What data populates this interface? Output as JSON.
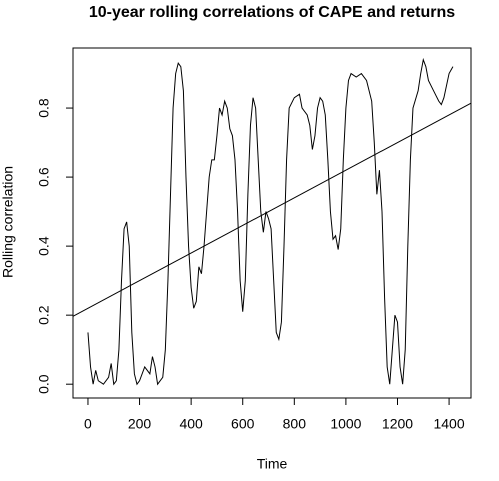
{
  "chart_data": {
    "type": "line",
    "title": "10-year rolling correlations of CAPE and returns",
    "x_label": "Time",
    "y_label": "Rolling correlation",
    "xlim": [
      -58,
      1485
    ],
    "ylim": [
      -0.04,
      0.974
    ],
    "xticks": [
      0,
      200,
      400,
      600,
      800,
      1000,
      1200,
      1400
    ],
    "yticks": [
      {
        "value": 0,
        "label": "0.0"
      },
      {
        "value": 0.2,
        "label": "0.2"
      },
      {
        "value": 0.4,
        "label": "0.4"
      },
      {
        "value": 0.6,
        "label": "0.6"
      },
      {
        "value": 0.8,
        "label": "0.8"
      }
    ],
    "x": [
      0,
      10,
      20,
      30,
      40,
      60,
      80,
      90,
      100,
      110,
      120,
      130,
      140,
      150,
      160,
      170,
      180,
      190,
      200,
      220,
      240,
      250,
      260,
      270,
      290,
      300,
      310,
      320,
      330,
      340,
      350,
      360,
      370,
      380,
      390,
      400,
      410,
      420,
      430,
      440,
      450,
      460,
      470,
      480,
      490,
      500,
      510,
      520,
      530,
      540,
      550,
      560,
      570,
      580,
      590,
      600,
      610,
      620,
      630,
      640,
      650,
      660,
      670,
      680,
      690,
      700,
      710,
      720,
      730,
      740,
      750,
      760,
      770,
      780,
      800,
      820,
      830,
      850,
      860,
      870,
      880,
      890,
      900,
      910,
      920,
      930,
      940,
      950,
      960,
      970,
      980,
      990,
      1000,
      1010,
      1020,
      1040,
      1060,
      1080,
      1100,
      1110,
      1120,
      1130,
      1140,
      1150,
      1160,
      1170,
      1180,
      1190,
      1200,
      1210,
      1220,
      1230,
      1240,
      1250,
      1260,
      1280,
      1290,
      1300,
      1310,
      1320,
      1340,
      1360,
      1370,
      1380,
      1400,
      1415
    ],
    "series": [
      {
        "color": "#000000",
        "values": [
          0.15,
          0.05,
          0.0,
          0.04,
          0.01,
          0.0,
          0.02,
          0.06,
          0.0,
          0.01,
          0.1,
          0.3,
          0.45,
          0.47,
          0.4,
          0.15,
          0.03,
          0.0,
          0.01,
          0.05,
          0.03,
          0.08,
          0.05,
          0.0,
          0.02,
          0.1,
          0.3,
          0.55,
          0.8,
          0.9,
          0.93,
          0.92,
          0.85,
          0.6,
          0.4,
          0.28,
          0.22,
          0.24,
          0.34,
          0.32,
          0.4,
          0.5,
          0.6,
          0.65,
          0.65,
          0.72,
          0.8,
          0.78,
          0.82,
          0.8,
          0.74,
          0.72,
          0.65,
          0.5,
          0.3,
          0.21,
          0.3,
          0.55,
          0.75,
          0.83,
          0.8,
          0.65,
          0.5,
          0.44,
          0.5,
          0.48,
          0.45,
          0.3,
          0.15,
          0.13,
          0.18,
          0.4,
          0.65,
          0.8,
          0.83,
          0.84,
          0.8,
          0.78,
          0.75,
          0.68,
          0.72,
          0.8,
          0.83,
          0.82,
          0.78,
          0.65,
          0.5,
          0.42,
          0.43,
          0.39,
          0.45,
          0.65,
          0.8,
          0.88,
          0.9,
          0.89,
          0.9,
          0.88,
          0.82,
          0.7,
          0.55,
          0.62,
          0.5,
          0.25,
          0.05,
          0.0,
          0.1,
          0.2,
          0.18,
          0.05,
          0.0,
          0.1,
          0.4,
          0.65,
          0.8,
          0.85,
          0.9,
          0.94,
          0.92,
          0.88,
          0.85,
          0.82,
          0.81,
          0.83,
          0.9,
          0.92
        ]
      }
    ],
    "trend_line": {
      "intercept": 0.22,
      "slope": 0.0004,
      "color": "#000000"
    }
  }
}
